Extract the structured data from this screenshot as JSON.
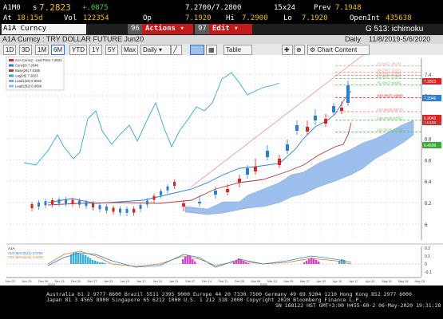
{
  "bar1": {
    "ticker": "A1M0",
    "type": "s",
    "last": "7.2823",
    "change": "+.0875",
    "bidask": "7.2700/7.2800",
    "size": "15x24",
    "prev_label": "Prev",
    "prev": "7.1948"
  },
  "bar2": {
    "at_label": "At",
    "time": "18:15d",
    "vol_label": "Vol",
    "vol": "122354",
    "op_label": "Op",
    "op": "7.1920",
    "hi_label": "Hi",
    "hi": "7.2900",
    "lo_label": "Lo",
    "lo": "7.1920",
    "oi_label": "OpenInt",
    "oi": "435638"
  },
  "bar3": {
    "input": "A1A Curncy",
    "actions": "Actions",
    "actions_num": "96",
    "edit": "Edit",
    "edit_num": "97",
    "screen": "G 513: ichimoku"
  },
  "title": {
    "name": "A1A Curncy : TRY DOLLAR FUTURE Jun20",
    "period": "Daily",
    "range": "11/8/2019-5/6/2020"
  },
  "toolbar": {
    "periods": [
      "1D",
      "3D",
      "1M",
      "6M",
      "YTD",
      "1Y",
      "5Y",
      "Max"
    ],
    "selected": "6M",
    "freq": "Daily",
    "table": "Table",
    "content": "Chart Content"
  },
  "legend": [
    "A1A Curncy - Last Price 7.2823",
    "Conv(9) 7.2046",
    "Base(26) 7.0185",
    "Lag(26) 7.2823",
    "Lead1(26) 6.9042",
    "Lead2(52) 6.4599"
  ],
  "y_axis": [
    "7.4",
    "7.2",
    "7",
    "6.8",
    "6.6",
    "6.4",
    "6.2",
    "6"
  ],
  "fib_labels": [
    "23.6%(7.4524)",
    "38.2%(7.3263)",
    "50.0%(7.2254)",
    "61.8%(7.1245)",
    "76.4%(7.0008)",
    "100.0%(7.1990)",
    "123.6%(6.9972)",
    "138.2%(6.8701)",
    "161.8%(6.6711)"
  ],
  "price_tags": [
    "7.2823",
    "7.2046",
    "7.0185",
    "6.9042",
    "6.4599"
  ],
  "x_axis": [
    "Nov 22",
    "Nov 29",
    "Dec 06",
    "Dec 13",
    "Dec 20",
    "Dec 27",
    "Jan 03",
    "Jan 10",
    "Jan 17",
    "Jan 24",
    "Jan 31",
    "Feb 07",
    "Feb 14",
    "Feb 21",
    "Feb 28",
    "Mar 06",
    "Mar 13",
    "Mar 20",
    "Mar 27",
    "Apr 03",
    "Apr 10",
    "Apr 17",
    "Apr 24",
    "May 01",
    "May 08",
    "May 15"
  ],
  "years": [
    "2019",
    "2020"
  ],
  "macd": {
    "title": "A1A",
    "line1": "ADX MACD(12) 2.0782",
    "line2": "ADX MACD(26) 0.0228",
    "axis": [
      "0.2",
      "0.1",
      "0",
      "-0.1"
    ]
  },
  "footer": {
    "line1": "Australia 61 2 9777 8600 Brazil 5511 2395 9000 Europe 44 20 7330 7500 Germany 49 69 9204 1210 Hong Kong 852 2977 6000",
    "line2": "Japan 81 3 4565 8900        Singapore 65 6212 1000        U.S. 1 212 318 2000        Copyright 2020 Bloomberg Finance L.P.",
    "line3": "SN 168122 HST  GMT+3:00 H455-60-2 06-May-2020 19:31:28"
  },
  "colors": {
    "accent": "#f2c200",
    "red": "#c21a1a",
    "green": "#3fd13f",
    "cloud": "#8db4ea",
    "conv": "#2a7fd4",
    "base": "#b23b3b",
    "lag": "#3aa7c8"
  }
}
